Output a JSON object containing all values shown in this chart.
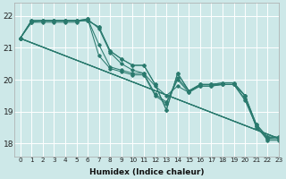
{
  "xlabel": "Humidex (Indice chaleur)",
  "line_color": "#2a7a6e",
  "bg_color": "#cde8e8",
  "grid_color": "#ffffff",
  "xlim": [
    -0.5,
    23
  ],
  "ylim": [
    17.6,
    22.4
  ],
  "yticks": [
    18,
    19,
    20,
    21,
    22
  ],
  "xticks": [
    0,
    1,
    2,
    3,
    4,
    5,
    6,
    7,
    8,
    9,
    10,
    11,
    12,
    13,
    14,
    15,
    16,
    17,
    18,
    19,
    20,
    21,
    22,
    23
  ],
  "series": [
    [
      21.3,
      21.8,
      21.8,
      21.8,
      21.8,
      21.8,
      21.9,
      21.6,
      20.85,
      20.5,
      20.3,
      20.2,
      19.8,
      19.5,
      19.8,
      19.6,
      19.85,
      19.85,
      19.85,
      19.85,
      19.5,
      18.5,
      18.15,
      18.2
    ],
    [
      21.3,
      21.8,
      21.85,
      21.85,
      21.85,
      21.85,
      21.9,
      21.1,
      20.4,
      20.3,
      20.2,
      20.2,
      19.55,
      19.3,
      20.05,
      19.65,
      19.8,
      19.8,
      19.85,
      19.85,
      19.4,
      18.55,
      18.15,
      18.15
    ],
    [
      21.3,
      21.85,
      21.85,
      21.85,
      21.85,
      21.85,
      21.9,
      20.75,
      20.35,
      20.25,
      20.15,
      20.15,
      19.5,
      19.25,
      20.0,
      19.6,
      19.8,
      19.8,
      19.85,
      19.85,
      19.35,
      18.55,
      18.1,
      18.1
    ],
    [
      21.3,
      21.85,
      21.85,
      21.85,
      21.85,
      21.85,
      21.85,
      21.65,
      20.9,
      20.65,
      20.45,
      20.45,
      19.85,
      19.05,
      20.2,
      19.65,
      19.85,
      19.85,
      19.9,
      19.9,
      19.5,
      18.6,
      18.2,
      18.2
    ],
    [
      21.3,
      21.85,
      21.85,
      21.85,
      21.85,
      21.85,
      21.85,
      21.65,
      20.9,
      20.65,
      20.45,
      20.45,
      19.85,
      19.05,
      20.2,
      19.65,
      19.85,
      19.85,
      19.9,
      19.9,
      19.5,
      18.6,
      18.2,
      18.2
    ]
  ],
  "straight_lines": [
    [
      [
        0,
        23
      ],
      [
        21.3,
        18.1
      ]
    ],
    [
      [
        0,
        23
      ],
      [
        21.3,
        18.15
      ]
    ],
    [
      [
        0,
        23
      ],
      [
        21.3,
        18.2
      ]
    ],
    [
      [
        0,
        23
      ],
      [
        21.3,
        18.25
      ]
    ]
  ]
}
